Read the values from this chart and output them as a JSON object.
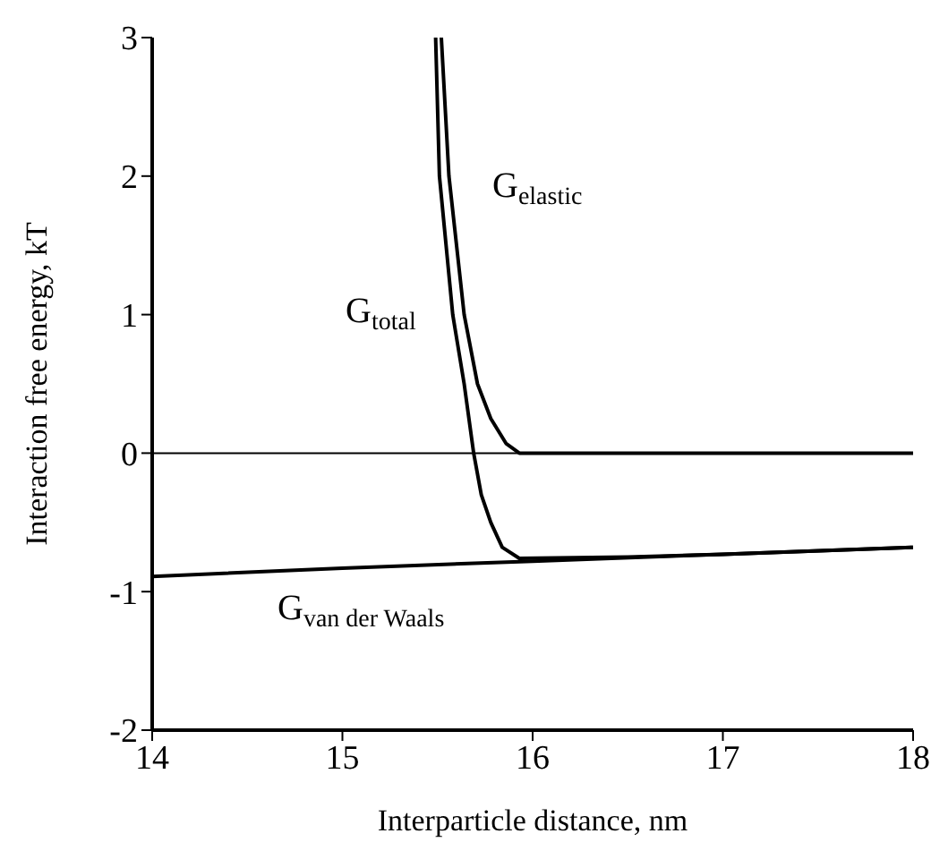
{
  "chart_data": {
    "type": "line",
    "xlabel": "Interparticle distance, nm",
    "ylabel": "Interaction free energy, kT",
    "xlim": [
      14,
      18
    ],
    "xticks": [
      14,
      15,
      16,
      17,
      18
    ],
    "ylim": [
      -2,
      3
    ],
    "yticks": [
      -2,
      -1,
      0,
      1,
      2,
      3
    ],
    "grid": false,
    "marker": "none",
    "line_style": "solid",
    "ref_lines": [
      {
        "axis": "y",
        "value": 0,
        "color": "#000000"
      }
    ],
    "series": [
      {
        "name": "G$_{total}$",
        "color": "#000000",
        "x": [
          15.49,
          15.51,
          15.58,
          15.64,
          15.69,
          15.73,
          15.78,
          15.84,
          15.93,
          16.5,
          17,
          18
        ],
        "values": [
          3,
          2,
          1,
          0.5,
          0,
          -0.3,
          -0.5,
          -0.68,
          -0.76,
          -0.75,
          -0.73,
          -0.68
        ]
      },
      {
        "name": "G$_{elastic}$",
        "color": "#000000",
        "x": [
          15.52,
          15.56,
          15.64,
          15.71,
          15.78,
          15.86,
          15.93,
          17,
          18
        ],
        "values": [
          3,
          2,
          1,
          0.5,
          0.25,
          0.07,
          0,
          0,
          0
        ]
      },
      {
        "name": "G$_{van der Waals}$",
        "color": "#000000",
        "x": [
          14,
          15,
          16,
          17,
          18
        ],
        "values": [
          -0.89,
          -0.83,
          -0.78,
          -0.73,
          -0.68
        ]
      }
    ]
  }
}
